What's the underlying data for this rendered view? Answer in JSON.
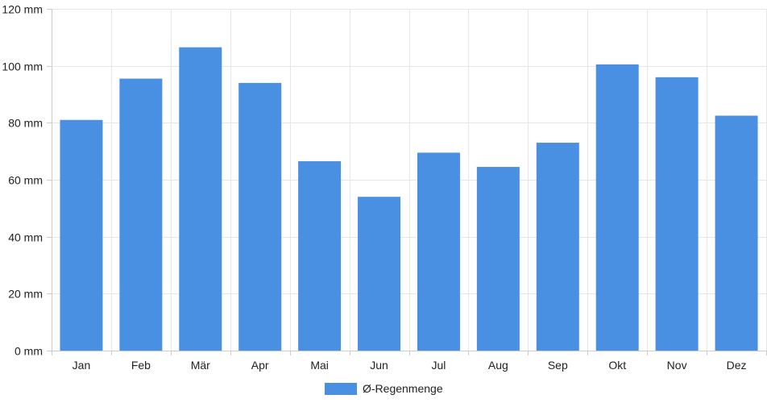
{
  "chart_data": {
    "type": "bar",
    "categories": [
      "Jan",
      "Feb",
      "Mär",
      "Apr",
      "Mai",
      "Jun",
      "Jul",
      "Aug",
      "Sep",
      "Okt",
      "Nov",
      "Dez"
    ],
    "series": [
      {
        "name": "Ø-Regenmenge",
        "color": "#4a90e2",
        "values": [
          81,
          95.5,
          106.5,
          94,
          66.5,
          54,
          69.5,
          64.5,
          73,
          100.5,
          96,
          82.5
        ]
      }
    ],
    "y_ticks": [
      "0 mm",
      "20 mm",
      "40 mm",
      "60 mm",
      "80 mm",
      "100 mm",
      "120 mm"
    ],
    "ylim": [
      0,
      120
    ],
    "y_unit": "mm",
    "grid": true,
    "legend_position": "bottom-center",
    "grid_color": "#e6e6e6",
    "axis_color": "#cccccc"
  }
}
